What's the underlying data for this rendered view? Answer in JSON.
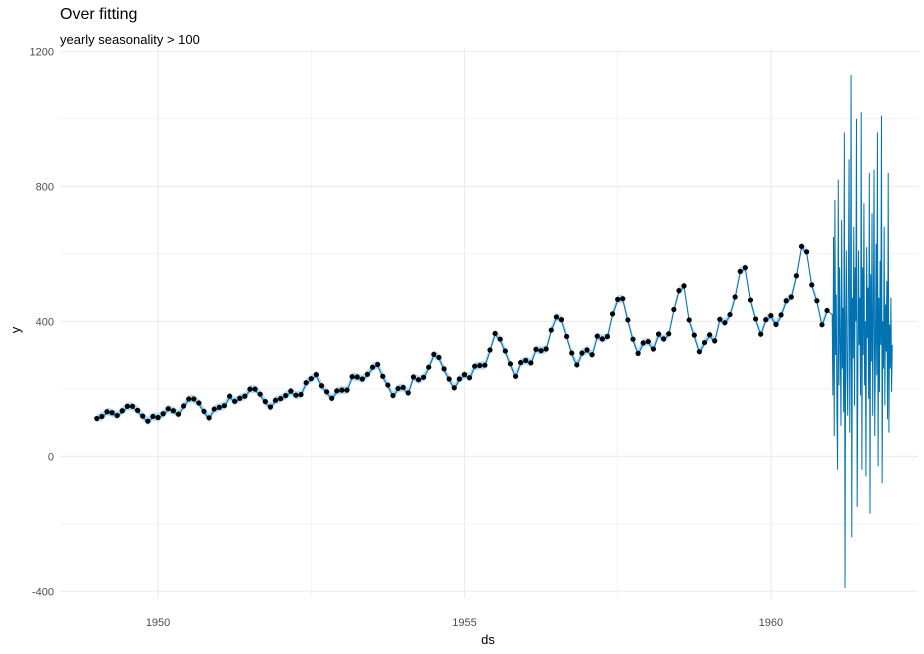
{
  "chart_data": {
    "type": "line",
    "title": "Over fitting",
    "subtitle": "yearly seasonality > 100",
    "xlabel": "ds",
    "ylabel": "y",
    "xlim": [
      1948.4,
      1962.4
    ],
    "ylim": [
      -420,
      1210
    ],
    "x_ticks": [
      1950,
      1955,
      1960
    ],
    "x_tick_labels": [
      "1950",
      "1955",
      "1960"
    ],
    "y_ticks": [
      -400,
      0,
      400,
      800,
      1200
    ],
    "y_tick_labels": [
      "-400",
      "0",
      "400",
      "800",
      "1200"
    ],
    "grid": true,
    "colors": {
      "forecast": "#0072B2",
      "interval": "#9fd3f5",
      "observed": "#000000",
      "grid": "#ebebeb"
    },
    "observed_start": 1949.0,
    "observed_step": 0.08333,
    "observed_y": [
      112,
      118,
      132,
      129,
      121,
      135,
      148,
      148,
      136,
      119,
      104,
      118,
      115,
      126,
      141,
      135,
      125,
      149,
      170,
      170,
      158,
      133,
      114,
      140,
      145,
      150,
      178,
      163,
      172,
      178,
      199,
      199,
      184,
      162,
      146,
      166,
      171,
      180,
      193,
      181,
      183,
      218,
      230,
      242,
      209,
      191,
      172,
      194,
      196,
      196,
      236,
      235,
      229,
      243,
      264,
      272,
      237,
      211,
      180,
      201,
      204,
      188,
      235,
      227,
      234,
      264,
      302,
      293,
      259,
      229,
      203,
      229,
      242,
      233,
      267,
      269,
      270,
      315,
      364,
      347,
      312,
      274,
      237,
      278,
      284,
      277,
      317,
      313,
      318,
      374,
      413,
      405,
      355,
      306,
      271,
      306,
      315,
      301,
      356,
      348,
      355,
      422,
      465,
      467,
      404,
      347,
      305,
      336,
      340,
      318,
      362,
      348,
      363,
      435,
      491,
      505,
      404,
      359,
      310,
      337,
      360,
      342,
      406,
      396,
      420,
      472,
      548,
      559,
      463,
      407,
      362,
      405,
      417,
      391,
      419,
      461,
      472,
      535,
      622,
      606,
      508,
      461,
      390,
      432
    ],
    "forecast_start": 1961.0,
    "forecast_end": 1961.98,
    "forecast_y": [
      420,
      180,
      650,
      60,
      760,
      300,
      480,
      140,
      -40,
      820,
      210,
      560,
      330,
      90,
      700,
      260,
      440,
      130,
      960,
      -390,
      380,
      610,
      250,
      120,
      520,
      880,
      70,
      340,
      1130,
      -240,
      470,
      290,
      680,
      150,
      560,
      400,
      1000,
      -150,
      230,
      610,
      330,
      470,
      180,
      1020,
      -40,
      560,
      300,
      750,
      210,
      400,
      -60,
      620,
      350,
      500,
      170,
      840,
      -170,
      540,
      280,
      720,
      120,
      410,
      850,
      60,
      300,
      630,
      240,
      960,
      -30,
      470,
      190,
      580,
      330,
      1010,
      -80,
      400,
      260,
      680,
      150,
      450,
      310,
      520,
      110,
      840,
      70,
      390,
      260,
      470,
      190,
      330
    ]
  }
}
